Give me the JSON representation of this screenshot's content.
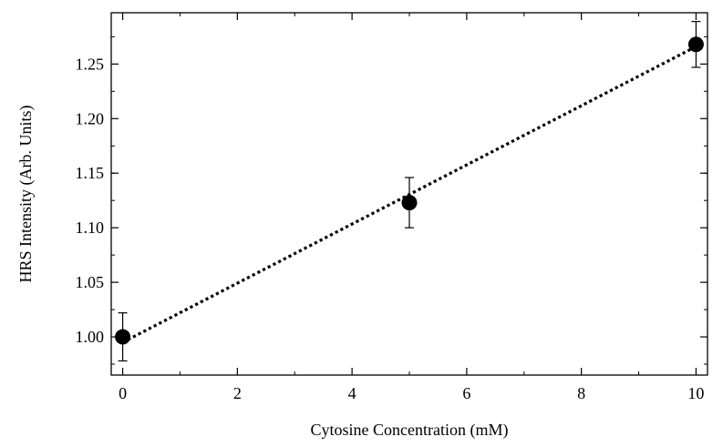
{
  "chart_data": {
    "type": "scatter",
    "title": "",
    "xlabel": "Cytosine Concentration (mM)",
    "ylabel": "HRS Intensity (Arb. Units)",
    "xlim": [
      -0.2,
      10.2
    ],
    "ylim": [
      0.965,
      1.297
    ],
    "x_ticks": [
      0,
      2,
      4,
      6,
      8,
      10
    ],
    "x_tick_labels": [
      "0",
      "2",
      "4",
      "6",
      "8",
      "10"
    ],
    "y_ticks": [
      1.0,
      1.05,
      1.1,
      1.15,
      1.2,
      1.25
    ],
    "y_tick_labels": [
      "1.00",
      "1.05",
      "1.10",
      "1.15",
      "1.20",
      "1.25"
    ],
    "grid": false,
    "legend": "none",
    "series": [
      {
        "marker": "filled-circle",
        "color": "#000000",
        "points": [
          {
            "x": 0,
            "y": 1.0,
            "err": 0.022
          },
          {
            "x": 5,
            "y": 1.123,
            "err": 0.023
          },
          {
            "x": 10,
            "y": 1.268,
            "err": 0.021
          }
        ]
      }
    ],
    "fit_line": {
      "style": "dotted",
      "color": "#000000",
      "x": [
        0,
        10
      ],
      "y": [
        0.995,
        1.266
      ]
    }
  }
}
